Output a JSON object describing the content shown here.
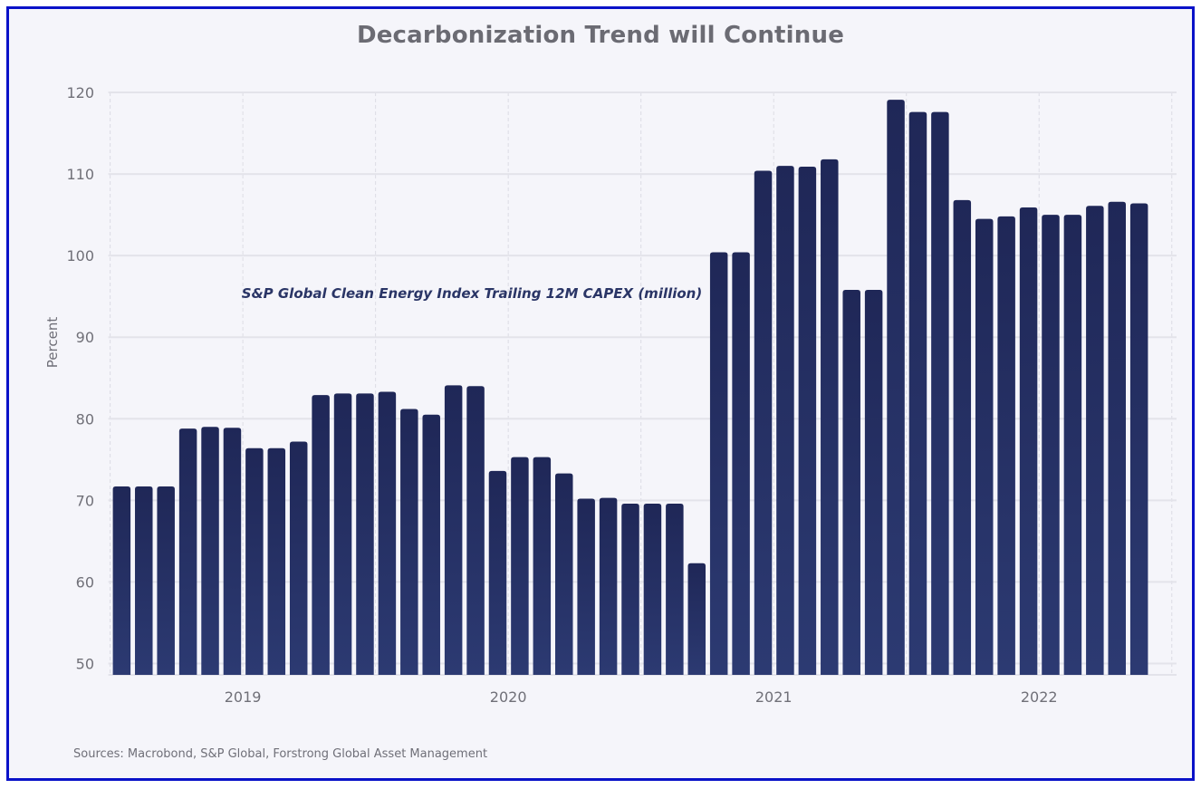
{
  "chart_data": {
    "type": "bar",
    "title": "Decarbonization Trend will Continue",
    "xlabel": "",
    "ylabel": "Percent",
    "ylim": [
      50,
      120
    ],
    "yticks": [
      50,
      60,
      70,
      80,
      90,
      100,
      110,
      120
    ],
    "grid": true,
    "x_unit": "monthly",
    "year_labels": [
      {
        "label": "2019",
        "first_bar_index": 0
      },
      {
        "label": "2020",
        "first_bar_index": 12
      },
      {
        "label": "2021",
        "first_bar_index": 24
      },
      {
        "label": "2022",
        "first_bar_index": 36
      }
    ],
    "annotation": "S&P Global Clean Energy Index Trailing 12M CAPEX (million)",
    "series": [
      {
        "name": "S&P Global Clean Energy Index Trailing 12M CAPEX (million)",
        "color": "#222a5c",
        "values": [
          71.7,
          71.7,
          71.7,
          78.8,
          79.0,
          78.9,
          76.4,
          76.4,
          77.2,
          82.9,
          83.1,
          83.1,
          83.3,
          81.2,
          80.5,
          84.1,
          84.0,
          73.6,
          75.3,
          75.3,
          73.3,
          70.2,
          70.3,
          69.6,
          69.6,
          69.6,
          62.3,
          100.4,
          100.4,
          110.4,
          111.0,
          110.9,
          111.8,
          95.8,
          95.8,
          119.1,
          117.6,
          117.6,
          106.8,
          104.5,
          104.8,
          105.9,
          105.0,
          105.0,
          106.1,
          106.6,
          106.4
        ]
      }
    ],
    "source": "Sources: Macrobond, S&P Global, Forstrong Global Asset Management"
  },
  "colors": {
    "border": "#0a12c8",
    "background": "#f5f5fa",
    "bar_top": "#1f2757",
    "bar_bottom": "#2c3a72"
  }
}
